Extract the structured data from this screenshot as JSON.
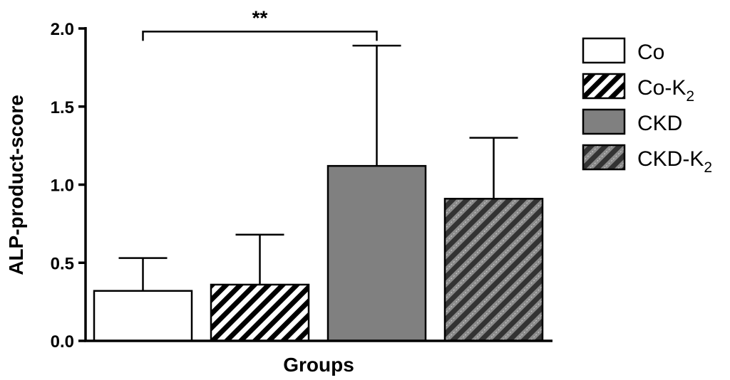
{
  "chart_data": {
    "type": "bar",
    "categories": [
      "Co",
      "Co-K2",
      "CKD",
      "CKD-K2"
    ],
    "values": [
      0.32,
      0.36,
      1.12,
      0.91
    ],
    "error_upper": [
      0.53,
      0.68,
      1.89,
      1.3
    ],
    "xlabel": "Groups",
    "ylabel": "ALP-product-score",
    "ylim": [
      0,
      2.0
    ],
    "yticks": [
      "0.0",
      "0.5",
      "1.0",
      "1.5",
      "2.0"
    ],
    "ytick_values": [
      0,
      0.5,
      1.0,
      1.5,
      2.0
    ],
    "legend_position": "right",
    "legend": [
      {
        "label": "Co",
        "subscript": "",
        "style": "white"
      },
      {
        "label": "Co-K",
        "subscript": "2",
        "style": "hatch-white"
      },
      {
        "label": "CKD",
        "subscript": "",
        "style": "gray"
      },
      {
        "label": "CKD-K",
        "subscript": "2",
        "style": "hatch-gray"
      }
    ],
    "significance": {
      "from": 0,
      "to": 2,
      "label": "**",
      "y": 1.98
    }
  },
  "colors": {
    "gray": "#808080",
    "hatch_gray_line": "#333333",
    "black": "#000000",
    "white": "#ffffff"
  }
}
